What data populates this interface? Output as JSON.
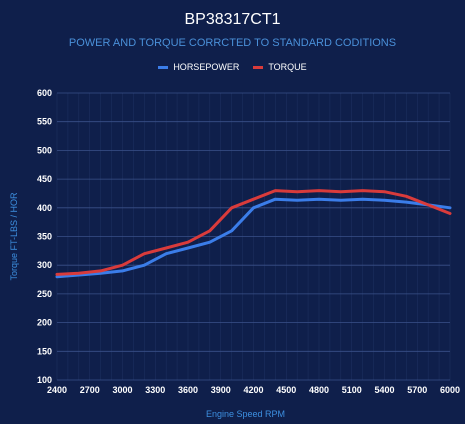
{
  "title": "BP38317CT1",
  "subtitle": "POWER AND TORQUE CORRCTED TO STANDARD CODITIONS",
  "colors": {
    "background": "#0f1f4b",
    "horsepower": "#3b7de9",
    "torque": "#d93b3b",
    "grid": "#2a3f73",
    "axis_title": "#3d8fe0"
  },
  "legend": [
    {
      "label": "HORSEPOWER",
      "color": "#3b7de9"
    },
    {
      "label": "TORQUE",
      "color": "#d93b3b"
    }
  ],
  "chart_data": {
    "type": "line",
    "title": "BP38317CT1",
    "subtitle": "POWER AND TORQUE CORRCTED TO STANDARD CODITIONS",
    "xlabel": "Engine Speed RPM",
    "ylabel": "Torque FT-LBS / HOR",
    "xlim": [
      2400,
      6000
    ],
    "ylim": [
      100,
      600
    ],
    "x_ticks": [
      "2400",
      "2700",
      "3000",
      "3300",
      "3600",
      "3900",
      "4200",
      "4500",
      "4800",
      "5100",
      "5400",
      "5700",
      "6000"
    ],
    "y_ticks": [
      "100",
      "150",
      "200",
      "250",
      "300",
      "350",
      "400",
      "450",
      "500",
      "550",
      "600"
    ],
    "grid": true,
    "legend_position": "top-center",
    "x": [
      2400,
      2600,
      2800,
      3000,
      3200,
      3400,
      3600,
      3800,
      4000,
      4200,
      4400,
      4600,
      4800,
      5000,
      5200,
      5400,
      5600,
      5800,
      6000
    ],
    "series": [
      {
        "name": "HORSEPOWER",
        "values": [
          280,
          283,
          286,
          290,
          300,
          320,
          330,
          340,
          360,
          400,
          415,
          413,
          415,
          413,
          415,
          413,
          410,
          405,
          400
        ]
      },
      {
        "name": "TORQUE",
        "values": [
          284,
          286,
          290,
          300,
          320,
          330,
          340,
          360,
          400,
          415,
          430,
          428,
          430,
          428,
          430,
          428,
          420,
          405,
          390
        ]
      }
    ]
  }
}
